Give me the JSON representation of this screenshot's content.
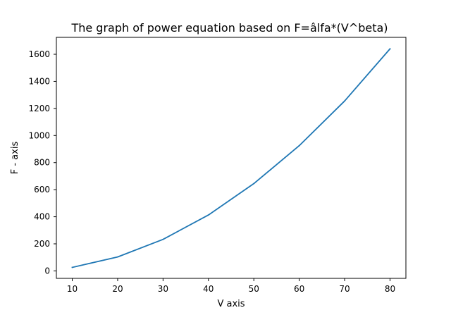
{
  "chart_data": {
    "type": "line",
    "title": "The graph of power equation based on F=âlfa*(V^beta)",
    "xlabel": "V axis",
    "ylabel": "F - axis",
    "xlim": [
      6.5,
      83.5
    ],
    "ylim": [
      -55,
      1725
    ],
    "x_ticks": [
      10,
      20,
      30,
      40,
      50,
      60,
      70,
      80
    ],
    "y_ticks": [
      0,
      200,
      400,
      600,
      800,
      1000,
      1200,
      1400,
      1600
    ],
    "grid": false,
    "series": [
      {
        "color": "#1f77b4",
        "x": [
          10,
          20,
          30,
          40,
          50,
          60,
          70,
          80
        ],
        "y": [
          26,
          103,
          233,
          413,
          645,
          925,
          1255,
          1640
        ]
      }
    ]
  }
}
